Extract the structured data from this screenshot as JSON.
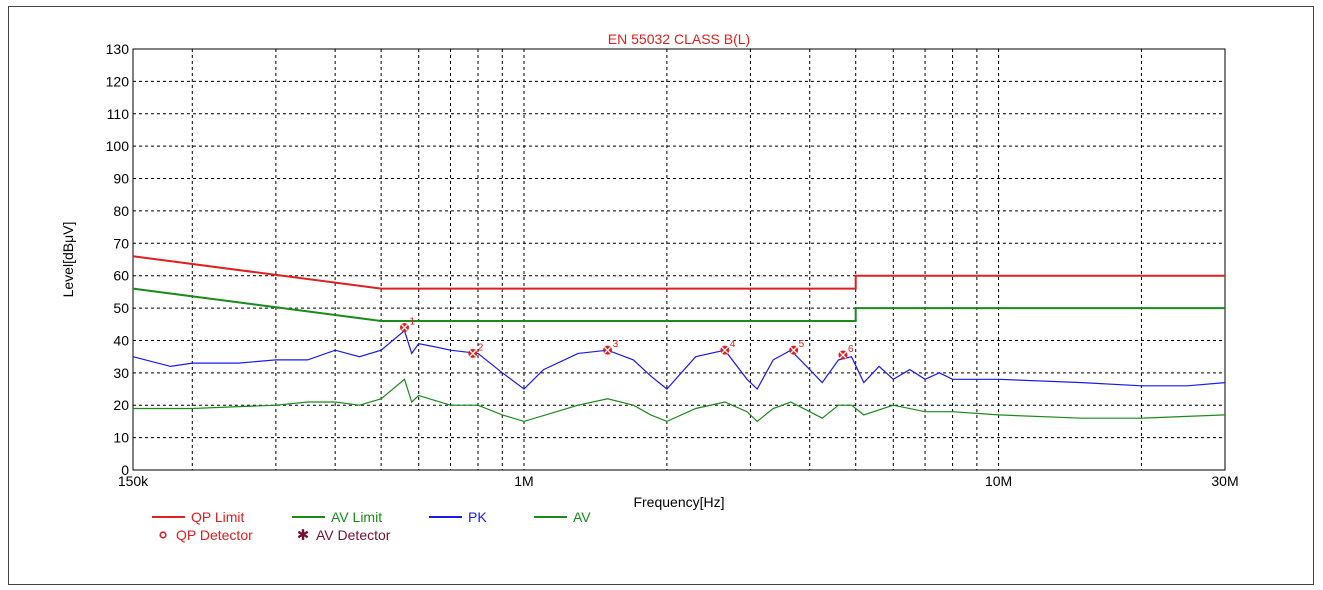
{
  "chart_data": {
    "type": "line",
    "title": "EN 55032 CLASS B(L)",
    "xlabel": "Frequency[Hz]",
    "ylabel": "Level[dBμV]",
    "x_scale": "log",
    "xlim": [
      150000,
      30000000
    ],
    "ylim": [
      0,
      130
    ],
    "y_ticks": [
      0,
      10,
      20,
      30,
      40,
      50,
      60,
      70,
      80,
      90,
      100,
      110,
      120,
      130
    ],
    "x_tick_labels": [
      {
        "value": 150000,
        "label": "150k"
      },
      {
        "value": 1000000,
        "label": "1M"
      },
      {
        "value": 10000000,
        "label": "10M"
      },
      {
        "value": 30000000,
        "label": "30M"
      }
    ],
    "x_grid": [
      150000,
      200000,
      300000,
      400000,
      500000,
      600000,
      700000,
      800000,
      900000,
      1000000,
      2000000,
      3000000,
      4000000,
      5000000,
      6000000,
      7000000,
      8000000,
      9000000,
      10000000,
      20000000,
      30000000
    ],
    "grid": true,
    "colors": {
      "qp_limit": "#e02020",
      "av_limit": "#1a8a1a",
      "pk": "#1a1aee",
      "av": "#1a8a1a",
      "marker": "#e02020",
      "title": "#e02020"
    },
    "series": [
      {
        "name": "QP Limit",
        "x": [
          150000,
          500000,
          500000,
          5000000,
          5000000,
          30000000
        ],
        "y": [
          66,
          56,
          56,
          56,
          60,
          60
        ]
      },
      {
        "name": "AV Limit",
        "x": [
          150000,
          500000,
          500000,
          5000000,
          5000000,
          30000000
        ],
        "y": [
          56,
          46,
          46,
          46,
          50,
          50
        ]
      },
      {
        "name": "PK",
        "x": [
          150000,
          180000,
          200000,
          250000,
          300000,
          350000,
          400000,
          450000,
          500000,
          560000,
          580000,
          600000,
          650000,
          700000,
          800000,
          900000,
          1000000,
          1100000,
          1300000,
          1500000,
          1700000,
          1850000,
          2000000,
          2300000,
          2650000,
          2950000,
          3100000,
          3350000,
          3650000,
          4000000,
          4250000,
          4600000,
          4900000,
          5200000,
          5600000,
          6000000,
          6500000,
          7000000,
          7500000,
          8000000,
          10000000,
          15000000,
          20000000,
          25000000,
          30000000
        ],
        "y": [
          35,
          32,
          33,
          33,
          34,
          34,
          37,
          35,
          37,
          43,
          36,
          39,
          38,
          37,
          36,
          30,
          25,
          31,
          36,
          37,
          34,
          29,
          25,
          35,
          37,
          28,
          25,
          34,
          37,
          31,
          27,
          34,
          35,
          27,
          32,
          28,
          31,
          28,
          30,
          28,
          28,
          27,
          26,
          26,
          27
        ]
      },
      {
        "name": "AV",
        "x": [
          150000,
          200000,
          300000,
          350000,
          400000,
          450000,
          500000,
          560000,
          580000,
          600000,
          700000,
          800000,
          900000,
          1000000,
          1300000,
          1500000,
          1700000,
          1850000,
          2000000,
          2300000,
          2650000,
          2950000,
          3100000,
          3350000,
          3650000,
          4000000,
          4250000,
          4600000,
          4900000,
          5200000,
          6000000,
          7000000,
          8000000,
          10000000,
          15000000,
          20000000,
          30000000
        ],
        "y": [
          19,
          19,
          20,
          21,
          21,
          20,
          22,
          28,
          21,
          23,
          20,
          20,
          17,
          15,
          20,
          22,
          20,
          17,
          15,
          19,
          21,
          18,
          15,
          19,
          21,
          18,
          16,
          20,
          20,
          17,
          20,
          18,
          18,
          17,
          16,
          16,
          17
        ]
      }
    ],
    "markers": [
      {
        "label": "1",
        "x": 560000,
        "y": 44
      },
      {
        "label": "2",
        "x": 780000,
        "y": 36
      },
      {
        "label": "3",
        "x": 1500000,
        "y": 37
      },
      {
        "label": "4",
        "x": 2650000,
        "y": 37
      },
      {
        "label": "5",
        "x": 3700000,
        "y": 37
      },
      {
        "label": "6",
        "x": 4700000,
        "y": 35.5
      }
    ],
    "legend": [
      {
        "label": "QP Limit",
        "symbol": "line",
        "color": "#e02020"
      },
      {
        "label": "AV Limit",
        "symbol": "line",
        "color": "#1a8a1a"
      },
      {
        "label": "PK",
        "symbol": "line",
        "color": "#1a1aee"
      },
      {
        "label": "AV",
        "symbol": "line",
        "color": "#1a8a1a"
      },
      {
        "label": "QP Detector",
        "symbol": "circle",
        "color": "#e02020"
      },
      {
        "label": "AV Detector",
        "symbol": "star",
        "color": "#7a1030"
      }
    ],
    "legend_position": "bottom-left"
  }
}
